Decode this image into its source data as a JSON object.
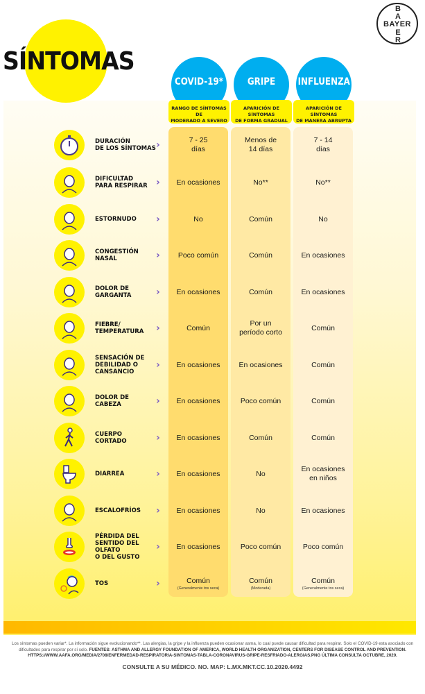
{
  "title": "SÍNTOMAS",
  "logo": {
    "horizontal": "BAYER",
    "vertical": [
      "B",
      "A",
      "Y",
      "E",
      "R"
    ]
  },
  "columns": [
    {
      "title": "COVID-19*",
      "subtitle": "RANGO DE SÍNTOMAS DE\nMODERADO A SEVERO",
      "color": "#ffdc6e"
    },
    {
      "title": "GRIPE",
      "subtitle": "APARICIÓN DE SÍNTOMAS\nDE FORMA GRADUAL",
      "color": "#ffe9a4"
    },
    {
      "title": "INFLUENZA",
      "subtitle": "APARICIÓN DE SÍNTOMAS\nDE MANERA ABRUPTA",
      "color": "#fff1d2"
    }
  ],
  "rows": [
    {
      "label": "DURACIÓN\nDE LOS SÍNTOMAS",
      "icon": "stopwatch-icon",
      "values": [
        "7 - 25\ndías",
        "Menos de\n14 días",
        "7 - 14\ndías"
      ]
    },
    {
      "label": "DIFICULTAD\nPARA RESPIRAR",
      "icon": "breathing-difficulty-icon",
      "values": [
        "En ocasiones",
        "No**",
        "No**"
      ]
    },
    {
      "label": "ESTORNUDO",
      "icon": "sneeze-icon",
      "values": [
        "No",
        "Común",
        "No"
      ]
    },
    {
      "label": "CONGESTIÓN\nNASAL",
      "icon": "nasal-congestion-icon",
      "values": [
        "Poco común",
        "Común",
        "En ocasiones"
      ]
    },
    {
      "label": "DOLOR DE\nGARGANTA",
      "icon": "sore-throat-icon",
      "values": [
        "En ocasiones",
        "Común",
        "En ocasiones"
      ]
    },
    {
      "label": "FIEBRE/\nTEMPERATURA",
      "icon": "fever-thermometer-icon",
      "values": [
        "Común",
        "Por un\nperíodo corto",
        "Común"
      ]
    },
    {
      "label": "SENSACIÓN DE\nDEBILIDAD O\nCANSANCIO",
      "icon": "fatigue-icon",
      "values": [
        "En ocasiones",
        "En ocasiones",
        "Común"
      ]
    },
    {
      "label": "DOLOR DE\nCABEZA",
      "icon": "headache-icon",
      "values": [
        "En ocasiones",
        "Poco común",
        "Común"
      ]
    },
    {
      "label": "CUERPO\nCORTADO",
      "icon": "body-ache-walking-icon",
      "values": [
        "En ocasiones",
        "Común",
        "Común"
      ]
    },
    {
      "label": "DIARREA",
      "icon": "toilet-icon",
      "values": [
        "En ocasiones",
        "No",
        "En ocasiones\nen niños"
      ]
    },
    {
      "label": "ESCALOFRÍOS",
      "icon": "chills-icon",
      "values": [
        "En ocasiones",
        "No",
        "En ocasiones"
      ]
    },
    {
      "label": "PÉRDIDA DEL\nSENTIDO DEL OLFATO\nO DEL GUSTO",
      "icon": "nose-mouth-icon",
      "values": [
        "En ocasiones",
        "Poco común",
        "Poco común"
      ]
    },
    {
      "label": "TOS",
      "icon": "cough-icon",
      "values": [
        "Común",
        "Común",
        "Común"
      ],
      "notes": [
        "(Generalmente tos seca)",
        "(Moderada)",
        "(Generalmente tos seca)"
      ]
    }
  ],
  "footer": {
    "disclaimer": "Los síntomas pueden variar*. La información sigue evolucionando**. Las alergias, la gripe y la influenza pueden ocasionar asma, lo cual puede causar dificultad para respirar. Solo el COVID-19 esta asociado con dificultades para respirar por sí solo.",
    "sources": "FUENTES: ASTHMA AND ALLERGY FOUNDATION OF AMERICA, WORLD HEALTH ORGANIZATION, CENTERS FOR DISEASE CONTROL AND PREVENTION. HTTPS://WWW.AAFA.ORG/MEDIA/2708/ENFERMEDAD-RESPIRATORIA-SINTOMAS-TABLA-CORONAVIRUS-GRIPE-RESFRIADO-ALERGIAS.PNG ÚLTIMA CONSULTA OCTUBRE, 2020.",
    "consult": "CONSULTE A SU MÉDICO. NO. MAP: L.MX.MKT.CC.10.2020.4492"
  },
  "colors": {
    "accent_yellow": "#fff200",
    "header_blue": "#00aeef",
    "chevron_purple": "#7b5cc4",
    "bar_orange": "#ffb800"
  }
}
